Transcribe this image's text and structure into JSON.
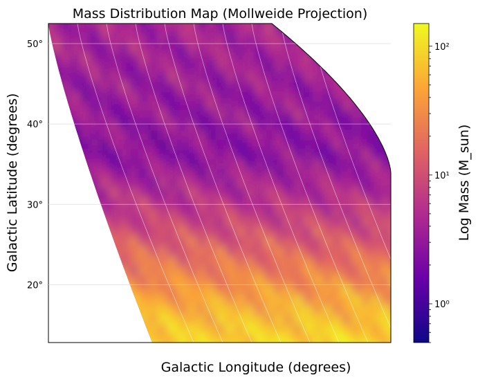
{
  "chart_data": {
    "type": "heatmap",
    "projection": "Mollweide",
    "title": "Mass Distribution Map (Mollweide Projection)",
    "xlabel": "Galactic Longitude (degrees)",
    "ylabel": "Galactic Latitude (degrees)",
    "ylim": [
      12.8,
      52.5
    ],
    "y_ticks": [
      20,
      30,
      40,
      50
    ],
    "y_tick_labels": [
      "20°",
      "30°",
      "40°",
      "50°"
    ],
    "x_ticks": [],
    "grid": true,
    "colorbar": {
      "label": "Log Mass (M_sun)",
      "scale": "log",
      "colormap": "plasma",
      "range": [
        0.5,
        150
      ],
      "ticks": [
        1,
        10,
        100
      ],
      "tick_labels": [
        "10⁰",
        "10¹",
        "10²"
      ]
    },
    "colors": {
      "plasma": [
        "#0d0887",
        "#6a00a8",
        "#b12a90",
        "#e16462",
        "#fca636",
        "#f0f921"
      ]
    },
    "trend": "Mass increases toward lower latitudes: values near 10^2 at ~13–18° latitude, mid values around 10^1 at 25–30°, and lowest values (~10^0) in a band around 35–50°."
  }
}
